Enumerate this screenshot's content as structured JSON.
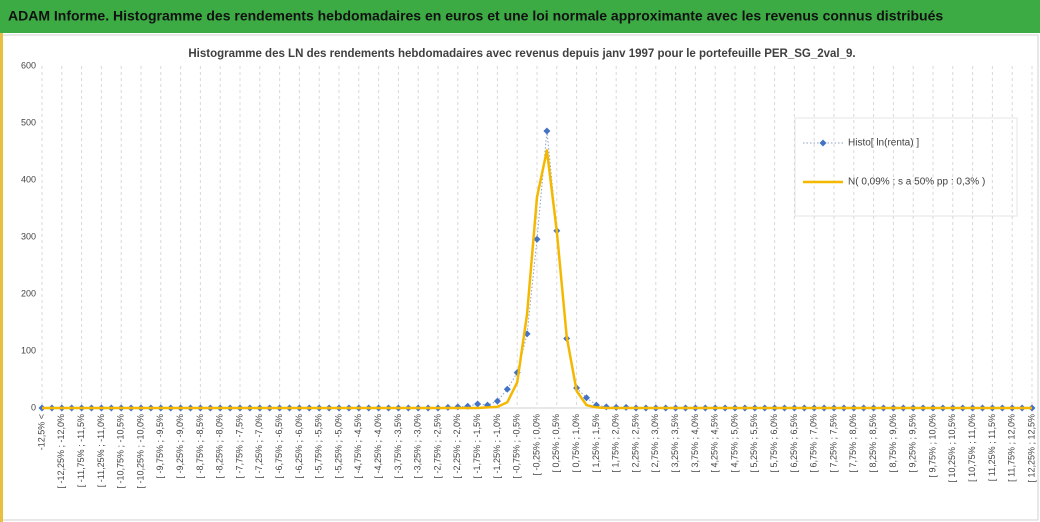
{
  "header": {
    "title": "ADAM Informe. Histogramme des rendements hebdomadaires en euros et une loi normale approximante avec les revenus connus distribués"
  },
  "chart_data": {
    "type": "line",
    "title": "Histogramme des LN des rendements hebdomadaires avec revenus depuis janv 1997 pour le portefeuille PER_SG_2val_9.",
    "categories": [
      "-12,5% <",
      null,
      "[ -12,25% ; -12,0%",
      null,
      "[ -11,75% ; -11,5%",
      null,
      "[ -11,25% ; -11,0%",
      null,
      "[ -10,75% ; -10,5%",
      null,
      "[ -10,25% ; -10,0%",
      null,
      "[ -9,75% ; -9,5%",
      null,
      "[ -9,25% ; -9,0%",
      null,
      "[ -8,75% ; -8,5%",
      null,
      "[ -8,25% ; -8,0%",
      null,
      "[ -7,75% ; -7,5%",
      null,
      "[ -7,25% ; -7,0%",
      null,
      "[ -6,75% ; -6,5%",
      null,
      "[ -6,25% ; -6,0%",
      null,
      "[ -5,75% ; -5,5%",
      null,
      "[ -5,25% ; -5,0%",
      null,
      "[ -4,75% ; -4,5%",
      null,
      "[ -4,25% ; -4,0%",
      null,
      "[ -3,75% ; -3,5%",
      null,
      "[ -3,25% ; -3,0%",
      null,
      "[ -2,75% ; -2,5%",
      null,
      "[ -2,25% ; -2,0%",
      null,
      "[ -1,75% ; -1,5%",
      null,
      "[ -1,25% ; -1,0%",
      null,
      "[ -0,75% ; -0,5%",
      null,
      "[ -0,25% ; 0,0%",
      null,
      "[ 0,25% ; 0,5%",
      null,
      "[ 0,75% ; 1,0%",
      null,
      "[ 1,25% ; 1,5%",
      null,
      "[ 1,75% ; 2,0%",
      null,
      "[ 2,25% ; 2,5%",
      null,
      "[ 2,75% ; 3,0%",
      null,
      "[ 3,25% ; 3,5%",
      null,
      "[ 3,75% ; 4,0%",
      null,
      "[ 4,25% ; 4,5%",
      null,
      "[ 4,75% ; 5,0%",
      null,
      "[ 5,25% ; 5,5%",
      null,
      "[ 5,75% ; 6,0%",
      null,
      "[ 6,25% ; 6,5%",
      null,
      "[ 6,75% ; 7,0%",
      null,
      "[ 7,25% ; 7,5%",
      null,
      "[ 7,75% ; 8,0%",
      null,
      "[ 8,25% ; 8,5%",
      null,
      "[ 8,75% ; 9,0%",
      null,
      "[ 9,25% ; 9,5%",
      null,
      "[ 9,75% ; 10,0%",
      null,
      "[ 10,25% ; 10,5%",
      null,
      "[ 10,75% ; 11,0%",
      null,
      "[ 11,25% ; 11,5%",
      null,
      "[ 11,75% ; 12,0%",
      null,
      "[ 12,25% ; 12,5%"
    ],
    "series": [
      {
        "name": "Histo[ ln(renta) ]",
        "color": "#4472c4",
        "values": [
          0,
          0,
          0,
          0,
          0,
          0,
          0,
          0,
          0,
          0,
          0,
          0,
          0,
          0,
          0,
          0,
          0,
          0,
          0,
          0,
          0,
          0,
          0,
          0,
          0,
          0,
          0,
          0,
          0,
          0,
          0,
          0,
          0,
          0,
          0,
          0,
          0,
          0,
          0,
          0,
          0,
          1,
          2,
          3,
          7,
          5,
          12,
          33,
          62,
          130,
          296,
          486,
          311,
          122,
          35,
          18,
          5,
          2,
          1,
          1,
          0,
          0,
          0,
          0,
          0,
          0,
          0,
          0,
          0,
          0,
          0,
          0,
          0,
          0,
          0,
          0,
          0,
          0,
          0,
          0,
          0,
          0,
          0,
          0,
          0,
          0,
          0,
          0,
          0,
          0,
          0,
          0,
          0,
          0,
          0,
          0,
          0,
          0,
          0,
          0,
          0
        ]
      },
      {
        "name": "N( 0,09% ; s a 50% pp : 0,3% )",
        "color": "#f5b800",
        "values": [
          0,
          0,
          0,
          0,
          0,
          0,
          0,
          0,
          0,
          0,
          0,
          0,
          0,
          0,
          0,
          0,
          0,
          0,
          0,
          0,
          0,
          0,
          0,
          0,
          0,
          0,
          0,
          0,
          0,
          0,
          0,
          0,
          0,
          0,
          0,
          0,
          0,
          0,
          0,
          0,
          0,
          0,
          0,
          0,
          0,
          1,
          2,
          10,
          45,
          165,
          370,
          452,
          310,
          125,
          30,
          5,
          1,
          0,
          0,
          0,
          0,
          0,
          0,
          0,
          0,
          0,
          0,
          0,
          0,
          0,
          0,
          0,
          0,
          0,
          0,
          0,
          0,
          0,
          0,
          0,
          0,
          0,
          0,
          0,
          0,
          0,
          0,
          0,
          0,
          0,
          0,
          0,
          0,
          0,
          0,
          0,
          0,
          0,
          0,
          0,
          0
        ]
      }
    ],
    "ylim": [
      0,
      600
    ],
    "yticks": [
      0,
      100,
      200,
      300,
      400,
      500,
      600
    ],
    "grid": true,
    "legend": "right"
  }
}
